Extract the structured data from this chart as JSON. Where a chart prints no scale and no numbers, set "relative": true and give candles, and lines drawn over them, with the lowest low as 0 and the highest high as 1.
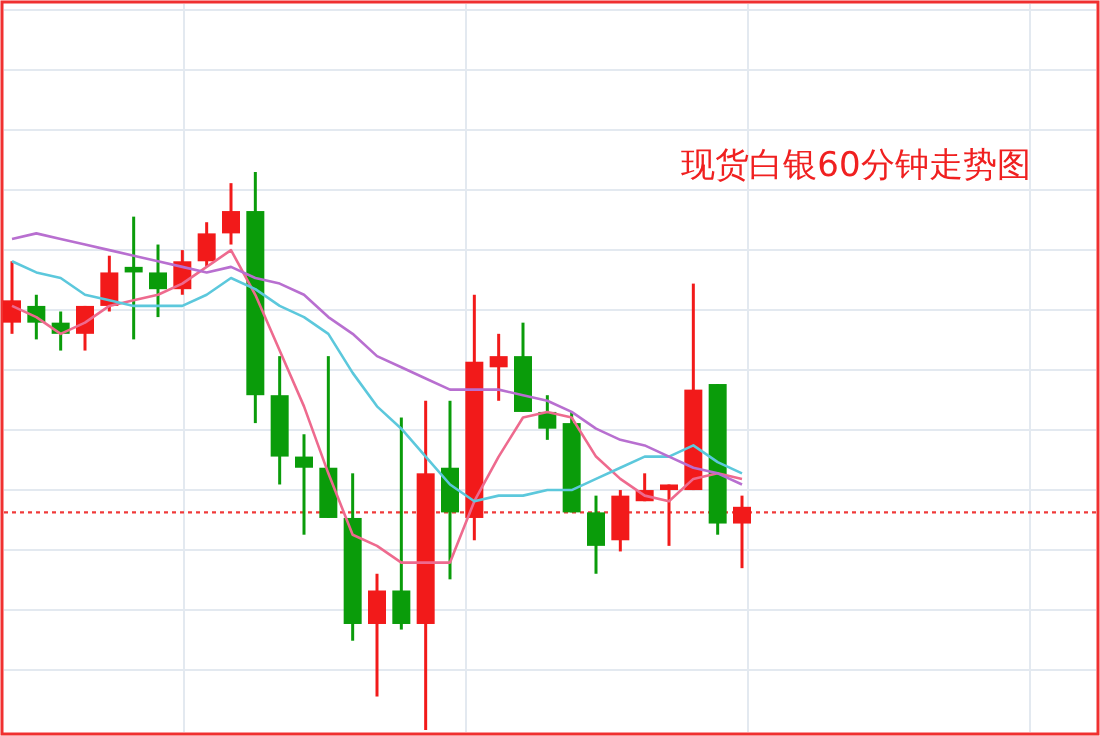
{
  "chart_data": {
    "type": "candlestick",
    "title": "现货白银60分钟走势图",
    "relative": true,
    "grid": true,
    "categories": [
      null,
      null,
      null,
      null,
      null,
      null,
      null,
      null,
      null,
      null,
      null,
      null,
      null,
      null,
      null,
      null,
      null,
      null,
      null,
      null,
      null,
      null,
      null,
      null,
      null,
      null,
      null,
      null,
      null,
      null,
      null
    ],
    "ohlc": [
      [
        0.73,
        0.84,
        0.71,
        0.77
      ],
      [
        0.76,
        0.78,
        0.7,
        0.73
      ],
      [
        0.73,
        0.75,
        0.68,
        0.71
      ],
      [
        0.71,
        0.76,
        0.68,
        0.76
      ],
      [
        0.76,
        0.85,
        0.75,
        0.82
      ],
      [
        0.83,
        0.92,
        0.7,
        0.82
      ],
      [
        0.82,
        0.87,
        0.74,
        0.79
      ],
      [
        0.79,
        0.86,
        0.78,
        0.84
      ],
      [
        0.84,
        0.91,
        0.83,
        0.89
      ],
      [
        0.89,
        0.98,
        0.87,
        0.93
      ],
      [
        0.93,
        1,
        0.55,
        0.6
      ],
      [
        0.6,
        0.67,
        0.44,
        0.49
      ],
      [
        0.49,
        0.53,
        0.35,
        0.47
      ],
      [
        0.47,
        0.67,
        0.38,
        0.38
      ],
      [
        0.38,
        0.46,
        0.16,
        0.19
      ],
      [
        0.19,
        0.28,
        0.06,
        0.25
      ],
      [
        0.25,
        0.56,
        0.18,
        0.19
      ],
      [
        0.19,
        0.59,
        0,
        0.46
      ],
      [
        0.47,
        0.59,
        0.27,
        0.39
      ],
      [
        0.38,
        0.78,
        0.34,
        0.66
      ],
      [
        0.65,
        0.71,
        0.59,
        0.67
      ],
      [
        0.67,
        0.73,
        0.57,
        0.57
      ],
      [
        0.57,
        0.6,
        0.52,
        0.54
      ],
      [
        0.55,
        0.57,
        0.39,
        0.39
      ],
      [
        0.39,
        0.42,
        0.28,
        0.33
      ],
      [
        0.34,
        0.43,
        0.32,
        0.42
      ],
      [
        0.41,
        0.46,
        0.41,
        0.43
      ],
      [
        0.43,
        0.44,
        0.33,
        0.44
      ],
      [
        0.43,
        0.8,
        0.43,
        0.61
      ],
      [
        0.62,
        0.62,
        0.35,
        0.37
      ],
      [
        0.37,
        0.42,
        0.29,
        0.4
      ]
    ],
    "colors": [
      "#f21a1a",
      "#0a9c0a",
      "#0a9c0a",
      "#f21a1a",
      "#f21a1a",
      "#0a9c0a",
      "#0a9c0a",
      "#f21a1a",
      "#f21a1a",
      "#f21a1a",
      "#0a9c0a",
      "#0a9c0a",
      "#0a9c0a",
      "#0a9c0a",
      "#0a9c0a",
      "#f21a1a",
      "#0a9c0a",
      "#f21a1a",
      "#0a9c0a",
      "#f21a1a",
      "#f21a1a",
      "#0a9c0a",
      "#0a9c0a",
      "#0a9c0a",
      "#0a9c0a",
      "#f21a1a",
      "#f21a1a",
      "#f21a1a",
      "#f21a1a",
      "#0a9c0a",
      "#f21a1a"
    ],
    "series": [
      {
        "type": "line",
        "color": "#ee6a8e",
        "values": [
          0.76,
          0.74,
          0.71,
          0.73,
          0.76,
          0.77,
          0.78,
          0.8,
          0.83,
          0.86,
          0.78,
          0.68,
          0.58,
          0.46,
          0.35,
          0.33,
          0.3,
          0.3,
          0.3,
          0.41,
          0.49,
          0.56,
          0.57,
          0.56,
          0.49,
          0.45,
          0.42,
          0.41,
          0.45,
          0.46,
          0.45
        ]
      },
      {
        "type": "line",
        "color": "#5cc8dc",
        "values": [
          0.84,
          0.82,
          0.81,
          0.78,
          0.77,
          0.76,
          0.76,
          0.76,
          0.78,
          0.81,
          0.79,
          0.76,
          0.74,
          0.71,
          0.64,
          0.58,
          0.54,
          0.49,
          0.44,
          0.41,
          0.42,
          0.42,
          0.43,
          0.43,
          0.45,
          0.47,
          0.49,
          0.49,
          0.51,
          0.48,
          0.46
        ]
      },
      {
        "type": "line",
        "color": "#b86fd0",
        "values": [
          0.88,
          0.89,
          0.88,
          0.87,
          0.86,
          0.85,
          0.84,
          0.83,
          0.82,
          0.83,
          0.81,
          0.8,
          0.78,
          0.74,
          0.71,
          0.67,
          0.65,
          0.63,
          0.61,
          0.61,
          0.61,
          0.6,
          0.59,
          0.57,
          0.54,
          0.52,
          0.51,
          0.49,
          0.47,
          0.46,
          0.44
        ]
      }
    ],
    "ref_lines": [
      {
        "axis": "y",
        "value": 0.39,
        "color": "#f03a3a",
        "line_style": "dotted"
      }
    ]
  }
}
